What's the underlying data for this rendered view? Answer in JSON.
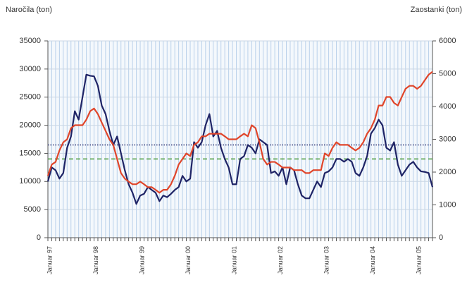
{
  "chart_data": {
    "type": "line",
    "y_label": "Naročila (ton)",
    "y2_label": "Zaostanki (ton)",
    "categories": [
      "Januar 97",
      null,
      null,
      null,
      null,
      null,
      null,
      null,
      null,
      null,
      null,
      null,
      "Januar 98",
      null,
      null,
      null,
      null,
      null,
      null,
      null,
      null,
      null,
      null,
      null,
      "Januar 99",
      null,
      null,
      null,
      null,
      null,
      null,
      null,
      null,
      null,
      null,
      null,
      "Januar 00",
      null,
      null,
      null,
      null,
      null,
      null,
      null,
      null,
      null,
      null,
      null,
      "Januar 01",
      null,
      null,
      null,
      null,
      null,
      null,
      null,
      null,
      null,
      null,
      null,
      "Januar 02",
      null,
      null,
      null,
      null,
      null,
      null,
      null,
      null,
      null,
      null,
      null,
      "Januar 03",
      null,
      null,
      null,
      null,
      null,
      null,
      null,
      null,
      null,
      null,
      null,
      "Januar 04",
      null,
      null,
      null,
      null,
      null,
      null,
      null,
      null,
      null,
      null,
      null,
      "Januar 05",
      null,
      null,
      null,
      null
    ],
    "series": [
      {
        "color": "#1f2466",
        "axis": "y",
        "values": [
          10000,
          12500,
          12000,
          10500,
          11500,
          16000,
          18000,
          22500,
          21000,
          25000,
          29000,
          28800,
          28700,
          27000,
          23500,
          22000,
          19000,
          16500,
          18000,
          15000,
          12000,
          9500,
          8000,
          6000,
          7500,
          7800,
          9000,
          8500,
          8000,
          6500,
          7500,
          7200,
          7800,
          8500,
          9000,
          11000,
          10000,
          10500,
          17000,
          16000,
          17000,
          20000,
          22000,
          18000,
          19000,
          16000,
          14000,
          12500,
          9500,
          9500,
          14000,
          14500,
          16500,
          16000,
          15000,
          17500,
          17000,
          16500,
          11500,
          11800,
          11000,
          12500,
          9500,
          12500,
          12000,
          9500,
          7500,
          7000,
          7000,
          8500,
          10000,
          9000,
          11500,
          11800,
          12500,
          14000,
          14000,
          13500,
          14000,
          13500,
          11500,
          11000,
          12500,
          14500,
          18500,
          19500,
          21000,
          20000,
          16000,
          15500,
          17000,
          13000,
          11000,
          12000,
          13000,
          13500,
          12500,
          11800,
          11700,
          11500,
          9000
        ]
      },
      {
        "color": "#e0452a",
        "axis": "y2",
        "values": [
          1890,
          2230,
          2310,
          2660,
          2910,
          3000,
          3340,
          3430,
          3430,
          3430,
          3600,
          3860,
          3940,
          3770,
          3510,
          3260,
          3000,
          2830,
          2400,
          1970,
          1800,
          1710,
          1630,
          1630,
          1710,
          1630,
          1540,
          1540,
          1460,
          1370,
          1460,
          1460,
          1630,
          1890,
          2230,
          2400,
          2570,
          2490,
          2830,
          2910,
          3090,
          3090,
          3170,
          3170,
          3170,
          3170,
          3090,
          3000,
          3000,
          3000,
          3090,
          3170,
          3090,
          3430,
          3340,
          2910,
          2400,
          2230,
          2310,
          2310,
          2230,
          2140,
          2140,
          2140,
          2060,
          2060,
          2060,
          1970,
          1970,
          2060,
          2060,
          2060,
          2570,
          2490,
          2740,
          2910,
          2830,
          2830,
          2830,
          2740,
          2660,
          2740,
          2910,
          3170,
          3340,
          3600,
          4030,
          4030,
          4290,
          4290,
          4110,
          4030,
          4290,
          4540,
          4630,
          4630,
          4540,
          4630,
          4800,
          4970,
          5060
        ]
      }
    ],
    "reference_lines": [
      {
        "value": 16500,
        "color": "#2a3070",
        "style": "dotted"
      },
      {
        "value": 14000,
        "color": "#4a9a3a",
        "style": "dashed"
      }
    ],
    "ylim": [
      0,
      35000
    ],
    "yticks": [
      0,
      5000,
      10000,
      15000,
      20000,
      25000,
      30000,
      35000
    ],
    "y2lim": [
      0,
      6000
    ],
    "y2ticks": [
      0,
      1000,
      2000,
      3000,
      4000,
      5000,
      6000
    ],
    "grid": true
  }
}
